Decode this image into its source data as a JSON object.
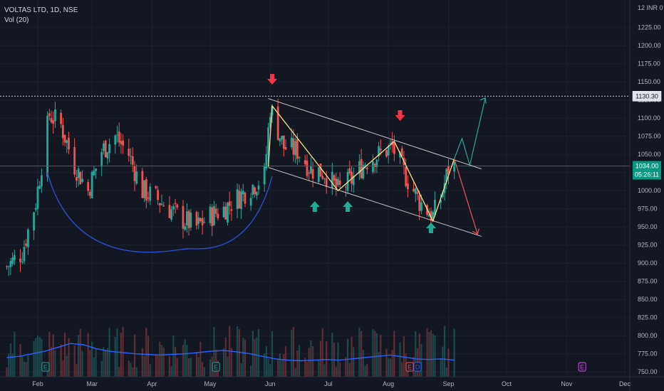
{
  "header": {
    "symbol_line": "VOLTAS LTD, 1D, NSE",
    "volume_line": "Vol (20)"
  },
  "price_axis": {
    "currency_label": "12 INR 0",
    "ticks": [
      "1225.00",
      "1200.00",
      "1175.00",
      "1150.00",
      "1125.00",
      "1100.00",
      "1075.00",
      "1050.00",
      "1025.00",
      "1000.00",
      "975.00",
      "950.00",
      "925.00",
      "900.00",
      "875.00",
      "850.00",
      "825.00",
      "800.00",
      "775.00",
      "750.00"
    ],
    "resistance_label": "1130.30",
    "last_price_label": "1034.00",
    "countdown_label": "05:26:11"
  },
  "time_axis": {
    "labels": [
      "Feb",
      "Mar",
      "Apr",
      "May",
      "Jun",
      "Jul",
      "Aug",
      "Sep",
      "Oct",
      "Nov",
      "Dec"
    ]
  },
  "events": {
    "earnings_marker": "E",
    "dividend_marker": "D"
  },
  "colors": {
    "background": "#131722",
    "up": "#26a69a",
    "down": "#ef5350",
    "volume_ma": "#2962ff",
    "zigzag": "#ffe28a",
    "channel": "#c8c8c8",
    "arc": "#2d4fd6",
    "arrow_up": "#22ab94",
    "arrow_down": "#f23645",
    "projection_up": "#26a69a",
    "projection_down": "#ef5350"
  },
  "chart_data": {
    "type": "candlestick",
    "symbol": "VOLTAS LTD",
    "interval": "1D",
    "exchange": "NSE",
    "ylim": [
      745,
      1238
    ],
    "x_months": [
      "Feb",
      "Mar",
      "Apr",
      "May",
      "Jun",
      "Jul",
      "Aug",
      "Sep",
      "Oct",
      "Nov",
      "Dec"
    ],
    "resistance_level": 1130.3,
    "last_price": 1034.0,
    "price_path": [
      {
        "date": "2023-01-16",
        "close": 895
      },
      {
        "date": "2023-01-24",
        "close": 915
      },
      {
        "date": "2023-01-31",
        "close": 985
      },
      {
        "date": "2023-02-07",
        "close": 1105
      },
      {
        "date": "2023-02-13",
        "close": 1090
      },
      {
        "date": "2023-02-20",
        "close": 1035
      },
      {
        "date": "2023-02-27",
        "close": 1000
      },
      {
        "date": "2023-03-06",
        "close": 1055
      },
      {
        "date": "2023-03-13",
        "close": 1075
      },
      {
        "date": "2023-03-20",
        "close": 1050
      },
      {
        "date": "2023-03-27",
        "close": 1000
      },
      {
        "date": "2023-04-03",
        "close": 990
      },
      {
        "date": "2023-04-10",
        "close": 975
      },
      {
        "date": "2023-04-17",
        "close": 960
      },
      {
        "date": "2023-04-24",
        "close": 950
      },
      {
        "date": "2023-05-01",
        "close": 965
      },
      {
        "date": "2023-05-08",
        "close": 975
      },
      {
        "date": "2023-05-15",
        "close": 990
      },
      {
        "date": "2023-05-22",
        "close": 1005
      },
      {
        "date": "2023-05-29",
        "close": 1020
      },
      {
        "date": "2023-06-01",
        "close": 1115
      },
      {
        "date": "2023-06-08",
        "close": 1060
      },
      {
        "date": "2023-06-15",
        "close": 1055
      },
      {
        "date": "2023-06-22",
        "close": 1030
      },
      {
        "date": "2023-06-29",
        "close": 1025
      },
      {
        "date": "2023-07-06",
        "close": 1000
      },
      {
        "date": "2023-07-13",
        "close": 1015
      },
      {
        "date": "2023-07-20",
        "close": 1040
      },
      {
        "date": "2023-07-27",
        "close": 1050
      },
      {
        "date": "2023-08-03",
        "close": 1060
      },
      {
        "date": "2023-08-10",
        "close": 1020
      },
      {
        "date": "2023-08-17",
        "close": 985
      },
      {
        "date": "2023-08-24",
        "close": 965
      },
      {
        "date": "2023-08-28",
        "close": 990
      },
      {
        "date": "2023-09-01",
        "close": 1030
      },
      {
        "date": "2023-09-04",
        "close": 1034
      }
    ],
    "volume_ma_path": [
      3,
      3.2,
      3.6,
      4.0,
      4.6,
      5.2,
      5.0,
      4.4,
      4.0,
      3.8,
      3.6,
      3.5,
      3.4,
      3.5,
      3.6,
      3.8,
      4.0,
      4.1,
      3.9,
      3.6,
      3.2,
      2.8,
      2.6,
      2.5,
      2.6,
      2.7,
      2.6,
      2.8,
      3.0,
      3.2,
      3.4,
      3.1,
      2.8,
      2.7,
      2.8,
      2.6
    ],
    "annotations": {
      "zigzag": [
        {
          "date": "2023-05-31",
          "price": 1033
        },
        {
          "date": "2023-06-02",
          "price": 1117
        },
        {
          "date": "2023-06-28",
          "price": 1028
        },
        {
          "date": "2023-07-06",
          "price": 1000
        },
        {
          "date": "2023-08-04",
          "price": 1068
        },
        {
          "date": "2023-08-24",
          "price": 958
        },
        {
          "date": "2023-09-04",
          "price": 1044
        }
      ],
      "channel_upper": [
        {
          "date": "2023-05-31",
          "price": 1127
        },
        {
          "date": "2023-09-18",
          "price": 1030
        }
      ],
      "channel_lower": [
        {
          "date": "2023-05-31",
          "price": 1032
        },
        {
          "date": "2023-09-18",
          "price": 937
        }
      ],
      "cup_arc": {
        "start_date": "2023-02-06",
        "bottom_date": "2023-04-20",
        "end_date": "2023-06-02",
        "bottom_price": 920
      },
      "projection_up": [
        {
          "date": "2023-09-04",
          "price": 1044
        },
        {
          "date": "2023-09-08",
          "price": 1072
        },
        {
          "date": "2023-09-12",
          "price": 1035
        },
        {
          "date": "2023-09-20",
          "price": 1128
        }
      ],
      "projection_down": [
        {
          "date": "2023-09-04",
          "price": 1044
        },
        {
          "date": "2023-09-16",
          "price": 940
        }
      ],
      "signal_arrows": [
        {
          "direction": "down",
          "date": "2023-06-02"
        },
        {
          "direction": "down",
          "date": "2023-08-07"
        },
        {
          "direction": "up",
          "date": "2023-06-24"
        },
        {
          "direction": "up",
          "date": "2023-07-11"
        },
        {
          "direction": "up",
          "date": "2023-08-23"
        }
      ]
    }
  }
}
